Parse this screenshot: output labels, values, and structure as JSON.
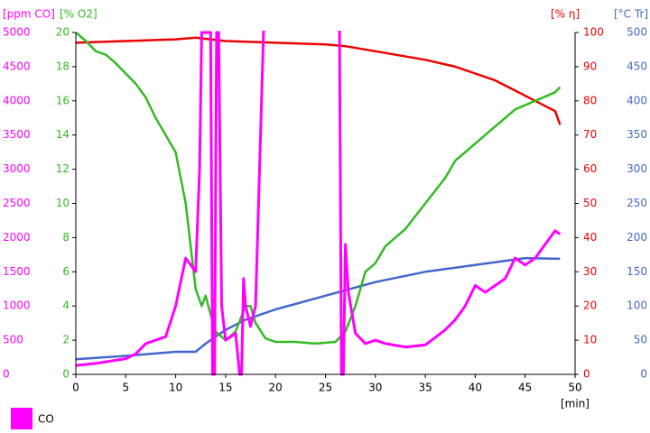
{
  "chart_data": {
    "type": "line",
    "xlabel": "[min]",
    "xlim": [
      0,
      50
    ],
    "xticks": [
      0,
      5,
      10,
      15,
      20,
      25,
      30,
      35,
      40,
      45,
      50
    ],
    "ylabel": "[ppm CO]",
    "ylim": [
      0,
      5000
    ],
    "yticks": [
      0,
      500,
      1000,
      1500,
      2000,
      2500,
      3000,
      3500,
      4000,
      4500,
      5000
    ],
    "y2label": "[% O2]",
    "y2lim": [
      0,
      20
    ],
    "y2ticks": [
      0,
      2,
      4,
      6,
      8,
      10,
      12,
      14,
      16,
      18,
      20
    ],
    "y3label": "[% η]",
    "y3lim": [
      0,
      100
    ],
    "y3ticks": [
      0,
      10,
      20,
      30,
      40,
      50,
      60,
      70,
      80,
      90,
      100
    ],
    "y4label": "[°C Tr]",
    "y4lim": [
      0,
      500
    ],
    "y4ticks": [
      0,
      50,
      100,
      150,
      200,
      250,
      300,
      350,
      400,
      450,
      500
    ],
    "legend": "bottom-left",
    "series": [
      {
        "name": "CO",
        "axis": "y",
        "color": "#ff00ff",
        "x": [
          0,
          2,
          5,
          6,
          7,
          8,
          9,
          10,
          11,
          12,
          12.4,
          12.6,
          13.5,
          13.7,
          13.9,
          14.1,
          14.3,
          14.6,
          15,
          16,
          16.4,
          16.6,
          16.8,
          17,
          17.5,
          18,
          18.6,
          18.8,
          19,
          26.4,
          26.6,
          26.8,
          27,
          27.3,
          28,
          29,
          30,
          31,
          33,
          35,
          37,
          38,
          39,
          40,
          41,
          42,
          43,
          44,
          45,
          46,
          47,
          48,
          48.5
        ],
        "values": [
          130,
          160,
          230,
          300,
          450,
          500,
          550,
          1000,
          1700,
          1500,
          3000,
          5000,
          5000,
          0,
          0,
          5000,
          5000,
          1000,
          500,
          600,
          0,
          0,
          1400,
          1000,
          700,
          1000,
          4000,
          5000,
          5200,
          5200,
          0,
          0,
          1900,
          1200,
          600,
          450,
          500,
          450,
          400,
          430,
          650,
          800,
          1000,
          1300,
          1200,
          1300,
          1400,
          1700,
          1600,
          1700,
          1900,
          2100,
          2050
        ]
      },
      {
        "name": "O2",
        "axis": "y2",
        "color": "#33bb22",
        "x": [
          0,
          1,
          2,
          3,
          4,
          5,
          6,
          7,
          8,
          9,
          10,
          11,
          12,
          12.6,
          13,
          13.5,
          14,
          15,
          16,
          17,
          17.5,
          18,
          19,
          20,
          22,
          24,
          26,
          27,
          28,
          29,
          30,
          31,
          32,
          33,
          35,
          37,
          38,
          40,
          42,
          44,
          46,
          48,
          48.5
        ],
        "values": [
          20,
          19.5,
          18.9,
          18.7,
          18.2,
          17.6,
          17,
          16.2,
          15,
          14,
          13,
          10,
          5,
          4,
          4.6,
          3.5,
          2.5,
          2,
          2.5,
          4,
          4,
          3,
          2.1,
          1.9,
          1.9,
          1.8,
          1.9,
          2.5,
          4,
          6,
          6.5,
          7.5,
          8,
          8.5,
          10,
          11.5,
          12.5,
          13.5,
          14.5,
          15.5,
          16,
          16.5,
          16.8
        ]
      },
      {
        "name": "η",
        "axis": "y3",
        "color": "#ee0000",
        "x": [
          0,
          5,
          10,
          12,
          15,
          20,
          25,
          27,
          30,
          35,
          38,
          40,
          42,
          44,
          46,
          48,
          48.5
        ],
        "values": [
          97,
          97.5,
          98,
          98.5,
          97.5,
          97,
          96.5,
          96,
          94.5,
          92,
          90,
          88,
          86,
          83,
          80,
          77,
          73
        ]
      },
      {
        "name": "Tr",
        "axis": "y4",
        "color": "#4466cc",
        "x": [
          0,
          5,
          10,
          12,
          13,
          15,
          17,
          20,
          25,
          30,
          35,
          40,
          45,
          48.5
        ],
        "values": [
          22,
          27,
          33,
          33,
          45,
          65,
          80,
          95,
          115,
          135,
          150,
          160,
          170,
          169
        ]
      }
    ]
  }
}
